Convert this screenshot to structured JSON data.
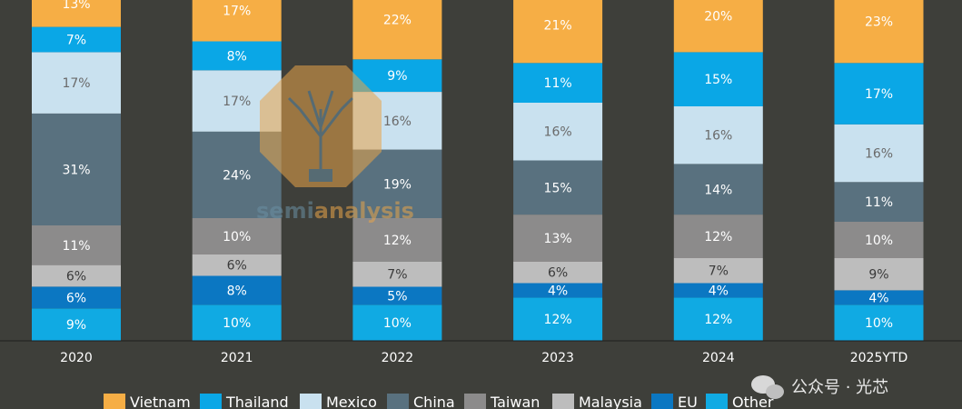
{
  "chart_data": {
    "type": "bar",
    "stacked": true,
    "categories": [
      "2020",
      "2021",
      "2022",
      "2023",
      "2024",
      "2025YTD"
    ],
    "series": [
      {
        "name": "Other",
        "color": "#10aae3",
        "text_color": "#ffffff",
        "values": [
          9,
          10,
          10,
          12,
          12,
          10
        ]
      },
      {
        "name": "EU",
        "color": "#0b77c2",
        "text_color": "#ffffff",
        "values": [
          6,
          8,
          5,
          4,
          4,
          4
        ]
      },
      {
        "name": "Malaysia",
        "color": "#bdbdbd",
        "text_color": "#3a3a3a",
        "values": [
          6,
          6,
          7,
          6,
          7,
          9
        ]
      },
      {
        "name": "Taiwan",
        "color": "#8c8b8b",
        "text_color": "#ffffff",
        "values": [
          11,
          10,
          12,
          13,
          12,
          10
        ]
      },
      {
        "name": "China",
        "color": "#59717f",
        "text_color": "#ffffff",
        "values": [
          31,
          24,
          19,
          15,
          14,
          11
        ]
      },
      {
        "name": "Mexico",
        "color": "#c9e1ef",
        "text_color": "#6a6a6a",
        "values": [
          17,
          17,
          16,
          16,
          16,
          16
        ]
      },
      {
        "name": "Thailand",
        "color": "#0aa7e6",
        "text_color": "#ffffff",
        "values": [
          7,
          8,
          9,
          11,
          15,
          17
        ]
      },
      {
        "name": "Vietnam",
        "color": "#f6ae45",
        "text_color": "#ffffff",
        "values": [
          13,
          17,
          22,
          21,
          20,
          23
        ]
      }
    ],
    "legend": {
      "position": "bottom",
      "order": [
        "Vietnam",
        "Thailand",
        "Mexico",
        "China",
        "Taiwan",
        "Malaysia",
        "EU",
        "Other"
      ]
    },
    "value_suffix": "%"
  },
  "watermark": {
    "text_prefix": "semi",
    "text_suffix": "analysis"
  },
  "wechat_tag": "公众号 · 光芯"
}
